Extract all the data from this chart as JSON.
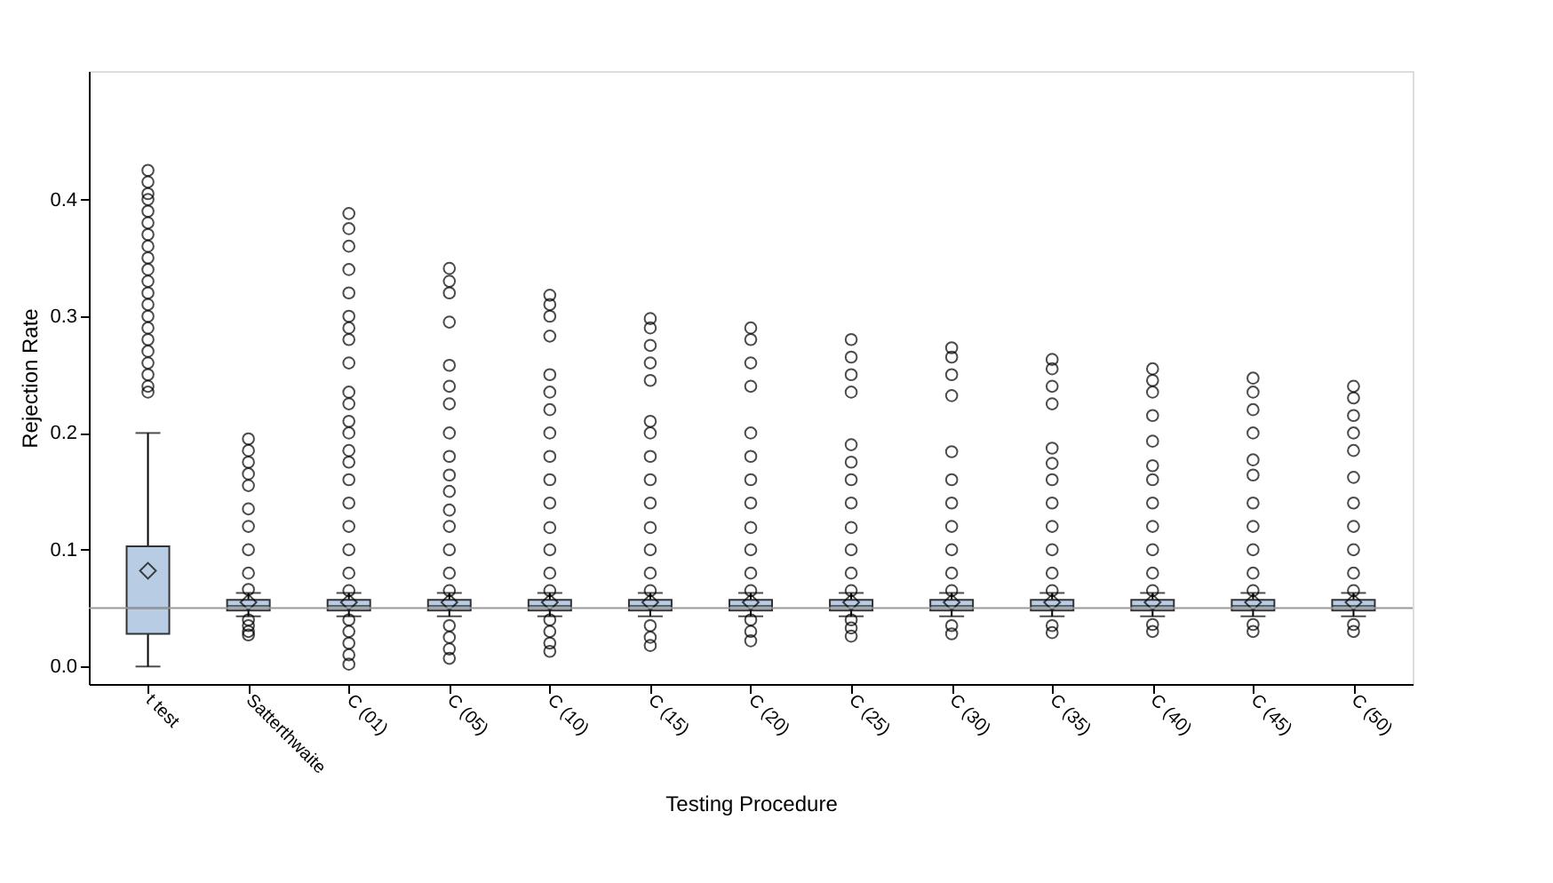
{
  "chart_data": {
    "type": "box",
    "xlabel": "Testing Procedure",
    "ylabel": "Rejection Rate",
    "categories": [
      "t test",
      "Satterthwaite",
      "C (01)",
      "C (05)",
      "C (10)",
      "C (15)",
      "C (20)",
      "C (25)",
      "C (30)",
      "C (35)",
      "C (40)",
      "C (45)",
      "C (50)"
    ],
    "color": "#b8cce4",
    "boxes": [
      {
        "low": 0.0,
        "q1": 0.028,
        "median": 0.05,
        "q3": 0.103,
        "high": 0.2,
        "mean": 0.082,
        "outliers": [
          0.235,
          0.24,
          0.25,
          0.26,
          0.27,
          0.28,
          0.29,
          0.3,
          0.31,
          0.32,
          0.33,
          0.34,
          0.35,
          0.36,
          0.37,
          0.38,
          0.39,
          0.4,
          0.405,
          0.415,
          0.425
        ]
      },
      {
        "low": 0.043,
        "q1": 0.048,
        "median": 0.052,
        "q3": 0.057,
        "high": 0.063,
        "mean": 0.055,
        "outliers": [
          0.027,
          0.03,
          0.035,
          0.04,
          0.066,
          0.08,
          0.1,
          0.12,
          0.135,
          0.155,
          0.165,
          0.175,
          0.185,
          0.195
        ]
      },
      {
        "low": 0.043,
        "q1": 0.048,
        "median": 0.052,
        "q3": 0.057,
        "high": 0.063,
        "mean": 0.055,
        "outliers": [
          0.002,
          0.01,
          0.02,
          0.03,
          0.04,
          0.065,
          0.08,
          0.1,
          0.12,
          0.14,
          0.16,
          0.175,
          0.185,
          0.2,
          0.21,
          0.225,
          0.235,
          0.26,
          0.28,
          0.29,
          0.3,
          0.32,
          0.34,
          0.36,
          0.375,
          0.388
        ]
      },
      {
        "low": 0.043,
        "q1": 0.048,
        "median": 0.052,
        "q3": 0.057,
        "high": 0.063,
        "mean": 0.055,
        "outliers": [
          0.007,
          0.015,
          0.025,
          0.035,
          0.065,
          0.08,
          0.1,
          0.12,
          0.134,
          0.15,
          0.164,
          0.18,
          0.2,
          0.225,
          0.24,
          0.258,
          0.295,
          0.32,
          0.33,
          0.341
        ]
      },
      {
        "low": 0.043,
        "q1": 0.048,
        "median": 0.052,
        "q3": 0.057,
        "high": 0.063,
        "mean": 0.055,
        "outliers": [
          0.013,
          0.02,
          0.03,
          0.04,
          0.065,
          0.08,
          0.1,
          0.119,
          0.14,
          0.16,
          0.18,
          0.2,
          0.22,
          0.235,
          0.25,
          0.283,
          0.3,
          0.31,
          0.318
        ]
      },
      {
        "low": 0.043,
        "q1": 0.048,
        "median": 0.052,
        "q3": 0.057,
        "high": 0.063,
        "mean": 0.055,
        "outliers": [
          0.018,
          0.025,
          0.035,
          0.065,
          0.08,
          0.1,
          0.119,
          0.14,
          0.16,
          0.18,
          0.2,
          0.21,
          0.245,
          0.26,
          0.275,
          0.29,
          0.298
        ]
      },
      {
        "low": 0.043,
        "q1": 0.048,
        "median": 0.052,
        "q3": 0.057,
        "high": 0.063,
        "mean": 0.055,
        "outliers": [
          0.022,
          0.03,
          0.04,
          0.065,
          0.08,
          0.1,
          0.119,
          0.14,
          0.16,
          0.18,
          0.2,
          0.24,
          0.26,
          0.28,
          0.29
        ]
      },
      {
        "low": 0.043,
        "q1": 0.048,
        "median": 0.052,
        "q3": 0.057,
        "high": 0.063,
        "mean": 0.055,
        "outliers": [
          0.026,
          0.033,
          0.04,
          0.065,
          0.08,
          0.1,
          0.119,
          0.14,
          0.16,
          0.175,
          0.19,
          0.235,
          0.25,
          0.265,
          0.28
        ]
      },
      {
        "low": 0.043,
        "q1": 0.048,
        "median": 0.052,
        "q3": 0.057,
        "high": 0.063,
        "mean": 0.055,
        "outliers": [
          0.028,
          0.035,
          0.065,
          0.08,
          0.1,
          0.12,
          0.14,
          0.16,
          0.184,
          0.232,
          0.25,
          0.265,
          0.273
        ]
      },
      {
        "low": 0.043,
        "q1": 0.048,
        "median": 0.052,
        "q3": 0.057,
        "high": 0.063,
        "mean": 0.055,
        "outliers": [
          0.029,
          0.035,
          0.065,
          0.08,
          0.1,
          0.12,
          0.14,
          0.16,
          0.174,
          0.187,
          0.225,
          0.24,
          0.255,
          0.263
        ]
      },
      {
        "low": 0.043,
        "q1": 0.048,
        "median": 0.052,
        "q3": 0.057,
        "high": 0.063,
        "mean": 0.055,
        "outliers": [
          0.03,
          0.036,
          0.065,
          0.08,
          0.1,
          0.12,
          0.14,
          0.16,
          0.172,
          0.193,
          0.215,
          0.235,
          0.245,
          0.255
        ]
      },
      {
        "low": 0.043,
        "q1": 0.048,
        "median": 0.052,
        "q3": 0.057,
        "high": 0.063,
        "mean": 0.055,
        "outliers": [
          0.03,
          0.036,
          0.065,
          0.08,
          0.1,
          0.12,
          0.14,
          0.164,
          0.177,
          0.2,
          0.22,
          0.235,
          0.247
        ]
      },
      {
        "low": 0.043,
        "q1": 0.048,
        "median": 0.052,
        "q3": 0.057,
        "high": 0.063,
        "mean": 0.055,
        "outliers": [
          0.03,
          0.036,
          0.065,
          0.08,
          0.1,
          0.12,
          0.14,
          0.162,
          0.185,
          0.2,
          0.215,
          0.23,
          0.24
        ]
      }
    ],
    "ylim": [
      -0.015,
      0.51
    ],
    "yticks": [
      {
        "value": 0,
        "label": "0.0"
      },
      0.1,
      0.2,
      0.3,
      0.4
    ],
    "ref_lines": [
      {
        "axis": "y",
        "value": 0.05,
        "color": "#999999"
      }
    ],
    "grid": false
  }
}
